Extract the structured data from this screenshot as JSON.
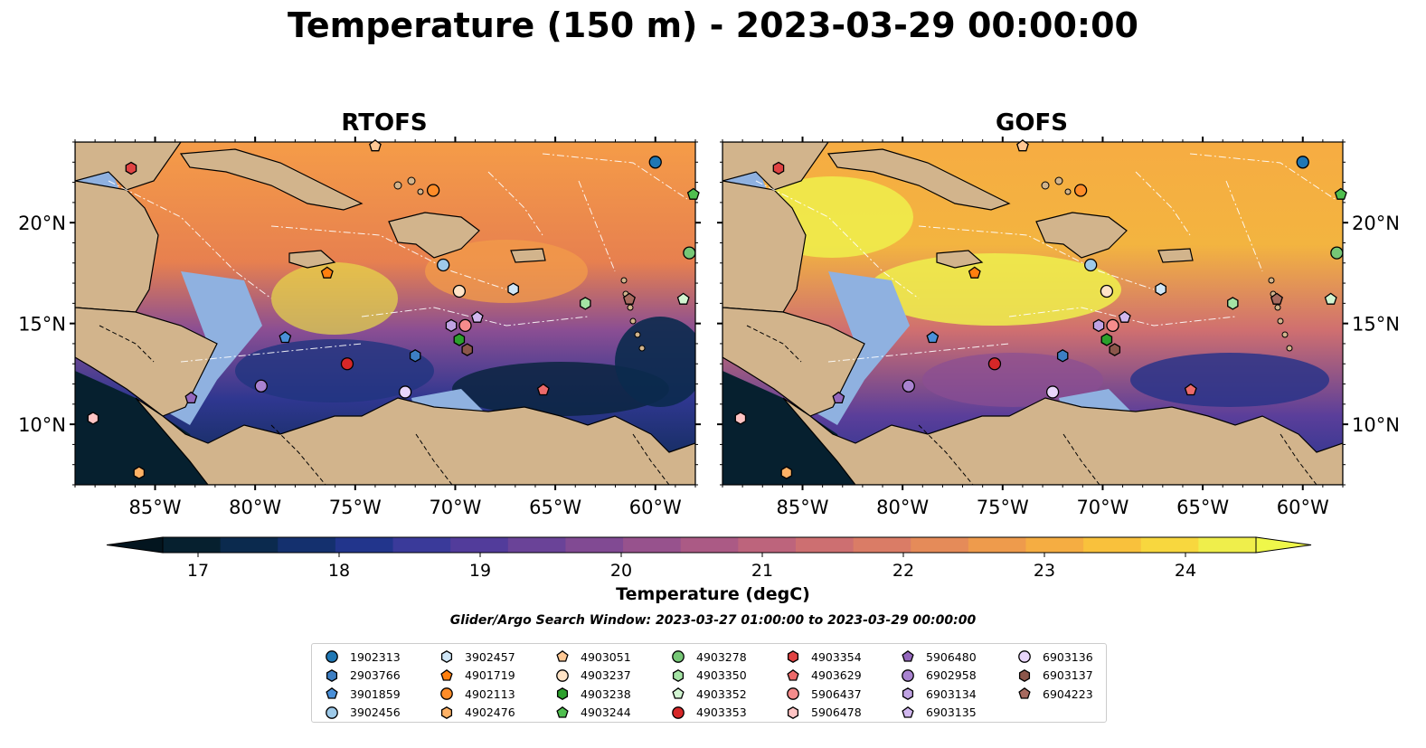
{
  "title": "Temperature (150 m) - 2023-03-29 00:00:00",
  "panels": [
    {
      "name": "RTOFS"
    },
    {
      "name": "GOFS"
    }
  ],
  "map": {
    "lon_range": [
      -89,
      -58
    ],
    "lat_range": [
      7,
      24
    ],
    "lon_ticks": [
      "85°W",
      "80°W",
      "75°W",
      "70°W",
      "65°W",
      "60°W"
    ],
    "lat_ticks": [
      "20°N",
      "15°N",
      "10°N"
    ],
    "land_color": "#d2b48c",
    "shelf_color": "#8fb1e0"
  },
  "colorbar": {
    "label": "Temperature (degC)",
    "ticks": [
      "17",
      "18",
      "19",
      "20",
      "21",
      "22",
      "23",
      "24"
    ],
    "range": [
      16.75,
      24.5
    ],
    "extend": "both",
    "colors": [
      "#06202f",
      "#0b2a4e",
      "#14306e",
      "#22358c",
      "#3a3a9a",
      "#523c9b",
      "#6a4398",
      "#814a93",
      "#97528d",
      "#ab5a85",
      "#bd647c",
      "#cd6f71",
      "#da7c66",
      "#e58b59",
      "#ee9b4c",
      "#f5ad42",
      "#f9c13c",
      "#f8d73e",
      "#efee4b"
    ]
  },
  "search_window": "Glider/Argo Search Window: 2023-03-27 01:00:00 to 2023-03-29 00:00:00",
  "floats": [
    {
      "id": "1902313",
      "color": "#1f77b4",
      "marker": "circle",
      "lon": -60.0,
      "lat": 23.0
    },
    {
      "id": "2903766",
      "color": "#3d7fc4",
      "marker": "hexagon",
      "lon": -72.0,
      "lat": 13.4
    },
    {
      "id": "3901859",
      "color": "#4a90d9",
      "marker": "pentagon",
      "lon": -78.5,
      "lat": 14.3
    },
    {
      "id": "3902456",
      "color": "#9ecae9",
      "marker": "circle",
      "lon": -70.6,
      "lat": 17.9
    },
    {
      "id": "3902457",
      "color": "#cfe6f7",
      "marker": "hexagon",
      "lon": -67.1,
      "lat": 16.7
    },
    {
      "id": "4901719",
      "color": "#ff7f0e",
      "marker": "pentagon",
      "lon": -76.4,
      "lat": 17.5
    },
    {
      "id": "4902113",
      "color": "#ff8c28",
      "marker": "circle",
      "lon": -71.1,
      "lat": 21.6
    },
    {
      "id": "4902476",
      "color": "#ffb266",
      "marker": "hexagon",
      "lon": -85.8,
      "lat": 7.6
    },
    {
      "id": "4903051",
      "color": "#ffc894",
      "marker": "pentagon",
      "lon": -74.0,
      "lat": 23.8
    },
    {
      "id": "4903237",
      "color": "#ffe3c6",
      "marker": "circle",
      "lon": -69.8,
      "lat": 16.6
    },
    {
      "id": "4903238",
      "color": "#2ca02c",
      "marker": "hexagon",
      "lon": -69.8,
      "lat": 14.2
    },
    {
      "id": "4903244",
      "color": "#4fbf4f",
      "marker": "pentagon",
      "lon": -58.1,
      "lat": 21.4
    },
    {
      "id": "4903278",
      "color": "#76c776",
      "marker": "circle",
      "lon": -58.3,
      "lat": 18.5
    },
    {
      "id": "4903350",
      "color": "#a4e3a4",
      "marker": "hexagon",
      "lon": -63.5,
      "lat": 16.0
    },
    {
      "id": "4903352",
      "color": "#d2f5d2",
      "marker": "pentagon",
      "lon": -58.6,
      "lat": 16.2
    },
    {
      "id": "4903353",
      "color": "#d62728",
      "marker": "circle",
      "lon": -75.4,
      "lat": 13.0
    },
    {
      "id": "4903354",
      "color": "#e04343",
      "marker": "hexagon",
      "lon": -86.2,
      "lat": 22.7
    },
    {
      "id": "4903629",
      "color": "#ed6a6a",
      "marker": "pentagon",
      "lon": -65.6,
      "lat": 11.7
    },
    {
      "id": "5906437",
      "color": "#f58c8c",
      "marker": "circle",
      "lon": -69.5,
      "lat": 14.9
    },
    {
      "id": "5906478",
      "color": "#ffc4c4",
      "marker": "hexagon",
      "lon": -88.1,
      "lat": 10.3
    },
    {
      "id": "5906480",
      "color": "#9467bd",
      "marker": "pentagon",
      "lon": -83.2,
      "lat": 11.3
    },
    {
      "id": "6902958",
      "color": "#a983d0",
      "marker": "circle",
      "lon": -79.7,
      "lat": 11.9
    },
    {
      "id": "6903134",
      "color": "#c0a3e3",
      "marker": "hexagon",
      "lon": -70.2,
      "lat": 14.9
    },
    {
      "id": "6903135",
      "color": "#d2b8f0",
      "marker": "pentagon",
      "lon": -68.9,
      "lat": 15.3
    },
    {
      "id": "6903136",
      "color": "#e9d6fb",
      "marker": "circle",
      "lon": -72.5,
      "lat": 11.6
    },
    {
      "id": "6903137",
      "color": "#8c564b",
      "marker": "hexagon",
      "lon": -69.4,
      "lat": 13.7
    },
    {
      "id": "6904223",
      "color": "#a76a5f",
      "marker": "pentagon",
      "lon": -61.3,
      "lat": 16.2
    }
  ]
}
